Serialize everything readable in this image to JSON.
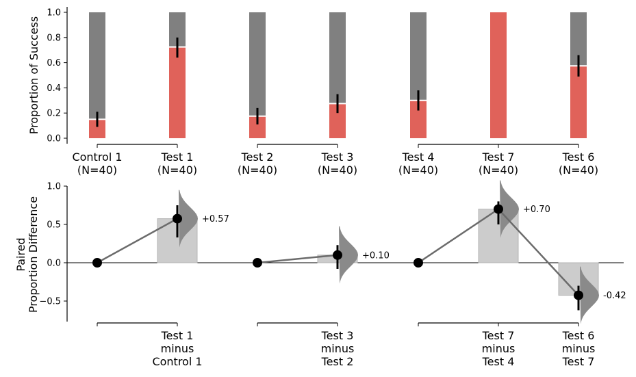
{
  "chart_data": [
    {
      "type": "bar",
      "ylabel": "Proportion of Success",
      "ylim": [
        0,
        1
      ],
      "yticks": [
        "0.0",
        "0.2",
        "0.4",
        "0.6",
        "0.8",
        "1.0"
      ],
      "categories": [
        "Control 1\n(N=40)",
        "Test 1\n(N=40)",
        "Test 2\n(N=40)",
        "Test 3\n(N=40)",
        "Test 4\n(N=40)",
        "Test 7\n(N=40)",
        "Test 6\n(N=40)"
      ],
      "values": [
        0.15,
        0.725,
        0.175,
        0.275,
        0.3,
        1.0,
        0.575
      ],
      "ci": [
        [
          0.09,
          0.21
        ],
        [
          0.64,
          0.8
        ],
        [
          0.11,
          0.24
        ],
        [
          0.2,
          0.35
        ],
        [
          0.22,
          0.38
        ],
        [
          1.0,
          1.0
        ],
        [
          0.49,
          0.66
        ]
      ],
      "colors": {
        "success": "#e0625a",
        "failure": "#808080"
      }
    },
    {
      "type": "scatter",
      "ylabel": "Paired\nProportion Difference",
      "ylim": [
        -0.75,
        1.0
      ],
      "yticks": [
        "−0.5",
        "0.0",
        "0.5",
        "1.0"
      ],
      "comparisons": [
        {
          "label": "Test 1\nminus\nControl 1",
          "delta": 0.575,
          "delta_label": "+0.57",
          "ci": [
            0.33,
            0.75
          ]
        },
        {
          "label": "Test 3\nminus\nTest 2",
          "delta": 0.1,
          "delta_label": "+0.10",
          "ci": [
            -0.08,
            0.23
          ]
        },
        {
          "label": "Test 7\nminus\nTest 4",
          "delta": 0.7,
          "delta_label": "+0.70",
          "ci": [
            0.5,
            0.8
          ]
        },
        {
          "label": "Test 6\nminus\nTest 7",
          "delta": -0.425,
          "delta_label": "-0.42",
          "ci": [
            -0.62,
            -0.3
          ]
        }
      ],
      "colors": {
        "bar": "#cccccc",
        "line": "#6b6b6b",
        "dist": "#8a8a8a",
        "point": "#000000"
      }
    }
  ]
}
